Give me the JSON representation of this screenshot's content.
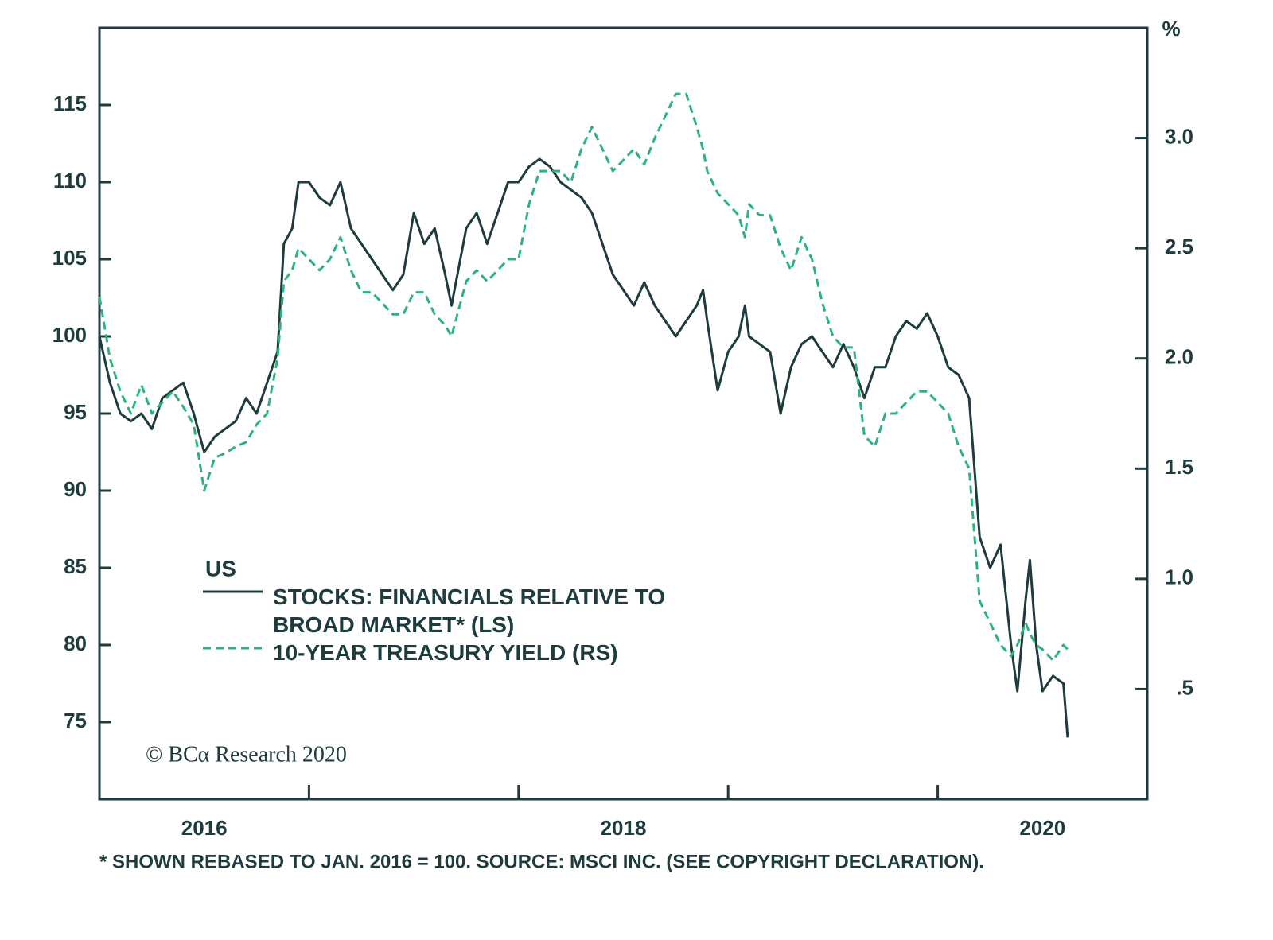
{
  "chart_data": {
    "type": "line",
    "x": [
      2016,
      2016.05,
      2016.1,
      2016.15,
      2016.2,
      2016.25,
      2016.3,
      2016.35,
      2016.4,
      2016.45,
      2016.5,
      2016.55,
      2016.6,
      2016.65,
      2016.7,
      2016.75,
      2016.8,
      2016.85,
      2016.88,
      2016.92,
      2016.95,
      2017,
      2017.05,
      2017.1,
      2017.15,
      2017.2,
      2017.25,
      2017.3,
      2017.35,
      2017.4,
      2017.45,
      2017.5,
      2017.55,
      2017.6,
      2017.65,
      2017.68,
      2017.75,
      2017.8,
      2017.85,
      2017.9,
      2017.95,
      2018,
      2018.05,
      2018.1,
      2018.15,
      2018.2,
      2018.25,
      2018.3,
      2018.35,
      2018.4,
      2018.45,
      2018.5,
      2018.55,
      2018.6,
      2018.65,
      2018.7,
      2018.75,
      2018.8,
      2018.85,
      2018.88,
      2018.9,
      2018.95,
      2019,
      2019.05,
      2019.08,
      2019.1,
      2019.15,
      2019.2,
      2019.25,
      2019.3,
      2019.35,
      2019.4,
      2019.45,
      2019.5,
      2019.55,
      2019.6,
      2019.65,
      2019.7,
      2019.75,
      2019.8,
      2019.85,
      2019.9,
      2019.95,
      2020,
      2020.05,
      2020.1,
      2020.15,
      2020.2,
      2020.25,
      2020.3,
      2020.35,
      2020.38,
      2020.42,
      2020.44,
      2020.47,
      2020.5,
      2020.55,
      2020.6,
      2020.62
    ],
    "xlim": [
      2016,
      2021
    ],
    "xticks": [
      {
        "value": 2016.5,
        "label": "2016"
      },
      {
        "value": 2018.5,
        "label": "2018"
      },
      {
        "value": 2020.5,
        "label": "2020"
      }
    ],
    "xtick_marks": [
      2017,
      2018,
      2019,
      2020
    ],
    "ylim": [
      70,
      120
    ],
    "yticks": [
      75,
      80,
      85,
      90,
      95,
      100,
      105,
      110,
      115
    ],
    "y2lim": [
      0,
      3.5
    ],
    "y2ticks": [
      {
        "value": 0.5,
        "label": ".5"
      },
      {
        "value": 1,
        "label": "1.0"
      },
      {
        "value": 1.5,
        "label": "1.5"
      },
      {
        "value": 2,
        "label": "2.0"
      },
      {
        "value": 2.5,
        "label": "2.5"
      },
      {
        "value": 3,
        "label": "3.0"
      }
    ],
    "y2label": "%",
    "legend_title": "US",
    "legend_position": "bottom-left",
    "series": [
      {
        "name": "STOCKS: FINANCIALS RELATIVE TO BROAD MARKET* (LS)",
        "color": "#1e3b3e",
        "dashed": false,
        "values": [
          100,
          97,
          95,
          94.5,
          95,
          94,
          96,
          96.5,
          97,
          95,
          92.5,
          93.5,
          94,
          94.5,
          96,
          95,
          97,
          99,
          106,
          107,
          110,
          110,
          109,
          108.5,
          110,
          107,
          106,
          105,
          104,
          103,
          104,
          108,
          106,
          107,
          104,
          102,
          107,
          108,
          106,
          108,
          110,
          110,
          111,
          111.5,
          111,
          110,
          109.5,
          109,
          108,
          106,
          104,
          103,
          102,
          103.5,
          102,
          101,
          100,
          101,
          102,
          103,
          101,
          96.5,
          99,
          100,
          102,
          100,
          99.5,
          99,
          95,
          98,
          99.5,
          100,
          99,
          98,
          99.5,
          98,
          96,
          98,
          98,
          100,
          101,
          100.5,
          101.5,
          100,
          98,
          97.5,
          96,
          87,
          85,
          86.5,
          80,
          77,
          83,
          85.5,
          80,
          77,
          78,
          77.5,
          74
        ]
      },
      {
        "name": "10-YEAR TREASURY YIELD (RS)",
        "color": "#2db381",
        "dashed": true,
        "axis": "y2",
        "values": [
          2.28,
          2.0,
          1.85,
          1.75,
          1.88,
          1.75,
          1.8,
          1.85,
          1.78,
          1.7,
          1.4,
          1.55,
          1.57,
          1.6,
          1.62,
          1.7,
          1.75,
          2.0,
          2.35,
          2.4,
          2.5,
          2.45,
          2.4,
          2.45,
          2.55,
          2.4,
          2.3,
          2.3,
          2.25,
          2.2,
          2.2,
          2.3,
          2.3,
          2.2,
          2.15,
          2.1,
          2.35,
          2.4,
          2.35,
          2.4,
          2.45,
          2.45,
          2.7,
          2.85,
          2.85,
          2.85,
          2.8,
          2.95,
          3.05,
          2.95,
          2.85,
          2.9,
          2.95,
          2.88,
          3.0,
          3.1,
          3.2,
          3.2,
          3.05,
          2.95,
          2.85,
          2.75,
          2.7,
          2.65,
          2.55,
          2.7,
          2.65,
          2.65,
          2.5,
          2.4,
          2.55,
          2.45,
          2.25,
          2.1,
          2.05,
          2.05,
          1.65,
          1.6,
          1.75,
          1.75,
          1.8,
          1.85,
          1.85,
          1.8,
          1.75,
          1.6,
          1.5,
          0.9,
          0.8,
          0.7,
          0.65,
          0.7,
          0.8,
          0.75,
          0.7,
          0.68,
          0.63,
          0.7,
          0.68
        ]
      }
    ],
    "credit": "© BCα Research 2020",
    "footnote": "* SHOWN REBASED TO JAN. 2016 = 100. SOURCE: MSCI INC. (SEE COPYRIGHT DECLARATION)."
  }
}
